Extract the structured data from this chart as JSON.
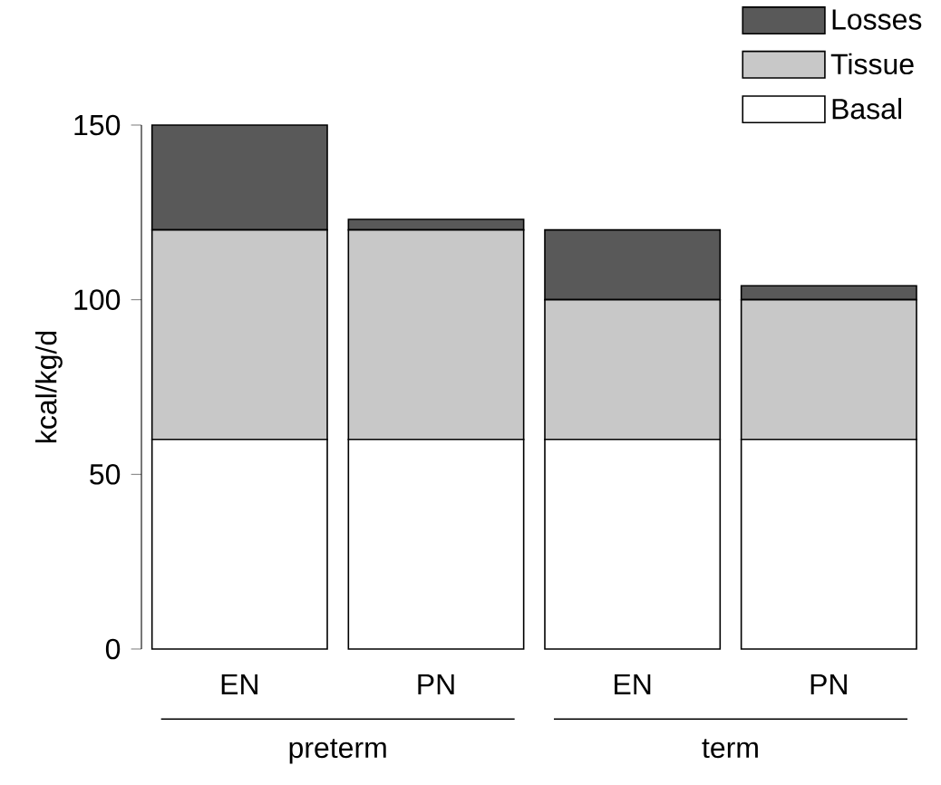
{
  "chart_data": {
    "type": "bar",
    "stacked": true,
    "ylabel": "kcal/kg/d",
    "categories": [
      "EN",
      "PN",
      "EN",
      "PN"
    ],
    "series": [
      {
        "name": "Basal",
        "color": "#ffffff",
        "values": [
          60,
          60,
          60,
          60
        ]
      },
      {
        "name": "Tissue",
        "color": "#c8c8c8",
        "values": [
          60,
          60,
          40,
          40
        ]
      },
      {
        "name": "Losses",
        "color": "#595959",
        "values": [
          30,
          3,
          20,
          4
        ]
      }
    ],
    "ylim": [
      0,
      150
    ],
    "yticks": [
      0,
      50,
      100,
      150
    ],
    "legend": "top right",
    "grid": false,
    "annotations": [
      "preterm",
      "term"
    ]
  }
}
